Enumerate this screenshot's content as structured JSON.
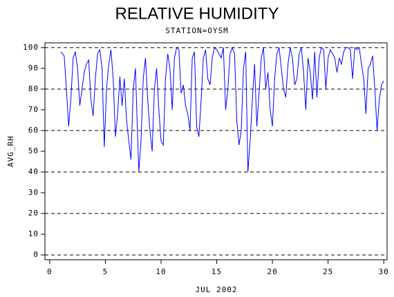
{
  "chart_data": {
    "type": "line",
    "title": "RELATIVE HUMIDITY",
    "subtitle": "STATION=OYSM",
    "x_label": "JUL 2002",
    "y_label": "AVG_RH",
    "color": "#0000ff",
    "grid": true,
    "xlim": [
      -0.43,
      30.3
    ],
    "ylim": [
      -2.3,
      102.3
    ],
    "xticks": [
      0,
      5,
      10,
      15,
      20,
      25,
      30
    ],
    "yticks": [
      0,
      10,
      20,
      30,
      40,
      50,
      60,
      70,
      80,
      90,
      100
    ],
    "gridlines": [
      0,
      20,
      40,
      60,
      80,
      100
    ],
    "x": [
      1.0,
      1.3,
      1.5,
      1.7,
      1.9,
      2.1,
      2.3,
      2.5,
      2.7,
      2.9,
      3.1,
      3.3,
      3.5,
      3.7,
      3.9,
      4.1,
      4.3,
      4.5,
      4.7,
      4.9,
      5.1,
      5.3,
      5.5,
      5.7,
      5.9,
      6.1,
      6.3,
      6.5,
      6.7,
      6.9,
      7.1,
      7.3,
      7.5,
      7.7,
      7.9,
      8.0,
      8.2,
      8.4,
      8.6,
      8.8,
      9.0,
      9.2,
      9.4,
      9.6,
      9.8,
      10.0,
      10.2,
      10.4,
      10.6,
      10.8,
      11.0,
      11.2,
      11.4,
      11.6,
      11.8,
      12.0,
      12.2,
      12.4,
      12.6,
      12.8,
      13.0,
      13.2,
      13.4,
      13.6,
      13.8,
      14.0,
      14.2,
      14.4,
      14.6,
      14.8,
      15.0,
      15.2,
      15.4,
      15.6,
      15.8,
      16.0,
      16.2,
      16.4,
      16.6,
      16.8,
      17.0,
      17.2,
      17.4,
      17.6,
      17.8,
      18.0,
      18.2,
      18.4,
      18.6,
      18.8,
      19.0,
      19.2,
      19.4,
      19.6,
      19.8,
      20.0,
      20.2,
      20.4,
      20.6,
      20.8,
      21.0,
      21.2,
      21.4,
      21.6,
      21.8,
      22.0,
      22.2,
      22.4,
      22.6,
      22.8,
      23.0,
      23.2,
      23.4,
      23.6,
      23.8,
      24.0,
      24.2,
      24.4,
      24.6,
      24.8,
      25.0,
      25.2,
      25.4,
      25.6,
      25.8,
      26.0,
      26.2,
      26.4,
      26.6,
      26.8,
      27.0,
      27.2,
      27.4,
      27.6,
      27.8,
      28.0,
      28.2,
      28.4,
      28.6,
      28.8,
      29.0,
      29.2,
      29.4,
      29.6,
      29.8,
      30.0
    ],
    "values": [
      98,
      96,
      80,
      62,
      75,
      95,
      98,
      90,
      72,
      80,
      88,
      92,
      94,
      75,
      67,
      85,
      97,
      99,
      90,
      52,
      80,
      92,
      99,
      85,
      57,
      68,
      86,
      72,
      85,
      65,
      55,
      46,
      80,
      90,
      56,
      40,
      55,
      85,
      95,
      75,
      60,
      50,
      80,
      90,
      70,
      55,
      53,
      85,
      97,
      90,
      70,
      95,
      100,
      99,
      78,
      82,
      72,
      68,
      60,
      95,
      98,
      62,
      57,
      75,
      95,
      99,
      85,
      82,
      95,
      100,
      99,
      97,
      95,
      100,
      70,
      80,
      97,
      100,
      97,
      65,
      53,
      60,
      90,
      98,
      40,
      55,
      75,
      92,
      62,
      78,
      95,
      100,
      80,
      88,
      70,
      62,
      85,
      97,
      100,
      90,
      80,
      76,
      92,
      100,
      95,
      82,
      85,
      97,
      100,
      88,
      70,
      95,
      88,
      75,
      98,
      76,
      95,
      100,
      99,
      80,
      95,
      99,
      97,
      95,
      88,
      95,
      92,
      98,
      100,
      100,
      99,
      85,
      100,
      99,
      100,
      92,
      85,
      68,
      90,
      92,
      96,
      80,
      60,
      75,
      82,
      84
    ]
  }
}
